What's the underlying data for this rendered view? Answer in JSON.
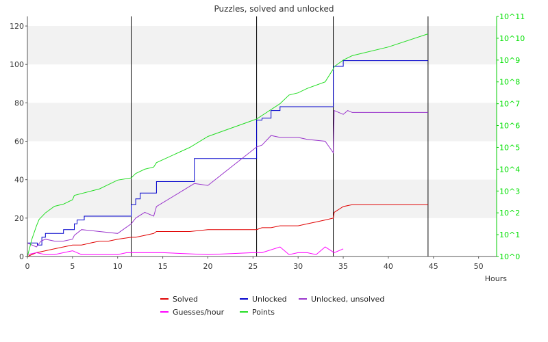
{
  "chart_data": {
    "type": "line",
    "title": "Puzzles, solved and unlocked",
    "xlabel": "Hours",
    "xlim": [
      0,
      52
    ],
    "xticks": [
      0,
      5,
      10,
      15,
      20,
      25,
      30,
      35,
      40,
      45,
      50
    ],
    "ylim": [
      0,
      125
    ],
    "yticks": [
      0,
      20,
      40,
      60,
      80,
      100,
      120
    ],
    "y2_scale": "log10",
    "y2lim": [
      0,
      11
    ],
    "y2ticks": [
      "10^0",
      "10^1",
      "10^2",
      "10^3",
      "10^4",
      "10^5",
      "10^6",
      "10^7",
      "10^8",
      "10^9",
      "10^10",
      "10^11"
    ],
    "grid": "alternating horizontal bands",
    "legend_position": "bottom",
    "round_markers": [
      11.5,
      25.4,
      33.9,
      44.4
    ],
    "series": [
      {
        "name": "Solved",
        "color": "#e00000",
        "axis": "left",
        "x": [
          0,
          1,
          2,
          3,
          4,
          5,
          6,
          7,
          8,
          9,
          10,
          11.5,
          12,
          13,
          14,
          14.3,
          18,
          20,
          25.4,
          26,
          27,
          28,
          29,
          30,
          31,
          32,
          33,
          33.9,
          34,
          35,
          36,
          40,
          44.4
        ],
        "y": [
          0,
          2,
          3,
          4,
          5,
          6,
          6,
          7,
          8,
          8,
          9,
          10,
          10,
          11,
          12,
          13,
          13,
          14,
          14,
          15,
          15,
          16,
          16,
          16,
          17,
          18,
          19,
          20,
          23,
          26,
          27,
          27,
          27
        ]
      },
      {
        "name": "Unlocked",
        "color": "#0000cc",
        "axis": "left",
        "step": true,
        "x": [
          0,
          0.6,
          1.1,
          1.6,
          2,
          3,
          4,
          5,
          5.2,
          5.5,
          6,
          6.3,
          11.5,
          12,
          12.5,
          14,
          14.3,
          18.5,
          25.4,
          26,
          27,
          28,
          33.9,
          35,
          36,
          44.4
        ],
        "y": [
          7,
          7,
          6,
          10,
          12,
          12,
          14,
          14,
          17,
          19,
          19,
          21,
          27,
          30,
          33,
          33,
          39,
          51,
          71,
          72,
          76,
          78,
          99,
          102,
          102,
          102
        ]
      },
      {
        "name": "Unlocked, unsolved",
        "color": "#9933cc",
        "axis": "left",
        "x": [
          0,
          1,
          1.5,
          2,
          3,
          4,
          5,
          5.2,
          6,
          8,
          10,
          11.5,
          12,
          13,
          14,
          14.3,
          18.5,
          20,
          25.4,
          26,
          27,
          28,
          30,
          31,
          33,
          33.9,
          34,
          35,
          35.5,
          36,
          44.4
        ],
        "y": [
          7,
          5,
          8,
          9,
          8,
          8,
          9,
          11,
          14,
          13,
          12,
          17,
          20,
          23,
          21,
          26,
          38,
          37,
          57,
          58,
          63,
          62,
          62,
          61,
          60,
          54,
          76,
          74,
          76,
          75,
          75
        ]
      },
      {
        "name": "Guesses/hour",
        "color": "#ff00ff",
        "axis": "left",
        "x": [
          0,
          1,
          2,
          3,
          4,
          5,
          6,
          10,
          11,
          12,
          15,
          20,
          25,
          26,
          28,
          29,
          30,
          31,
          32,
          33,
          34,
          35
        ],
        "y": [
          1,
          2,
          1,
          1,
          2,
          3,
          1,
          1,
          2,
          2,
          2,
          1,
          2,
          2,
          5,
          1,
          2,
          2,
          1,
          5,
          2,
          4
        ]
      },
      {
        "name": "Points",
        "color": "#22dd22",
        "axis": "right",
        "x": [
          0,
          0.5,
          1,
          1.3,
          2,
          3,
          4,
          5,
          5.2,
          8,
          9,
          10,
          11.5,
          12,
          13,
          14,
          14.3,
          18,
          20,
          25.4,
          28,
          29,
          30,
          31,
          33,
          33.9,
          34,
          35,
          36,
          40,
          44.4
        ],
        "y": [
          0,
          0.8,
          1.4,
          1.7,
          2,
          2.3,
          2.4,
          2.6,
          2.8,
          3.1,
          3.3,
          3.5,
          3.6,
          3.8,
          4,
          4.1,
          4.3,
          5,
          5.5,
          6.3,
          7,
          7.4,
          7.5,
          7.7,
          8,
          8.6,
          8.7,
          9,
          9.2,
          9.6,
          10.2
        ]
      }
    ]
  }
}
